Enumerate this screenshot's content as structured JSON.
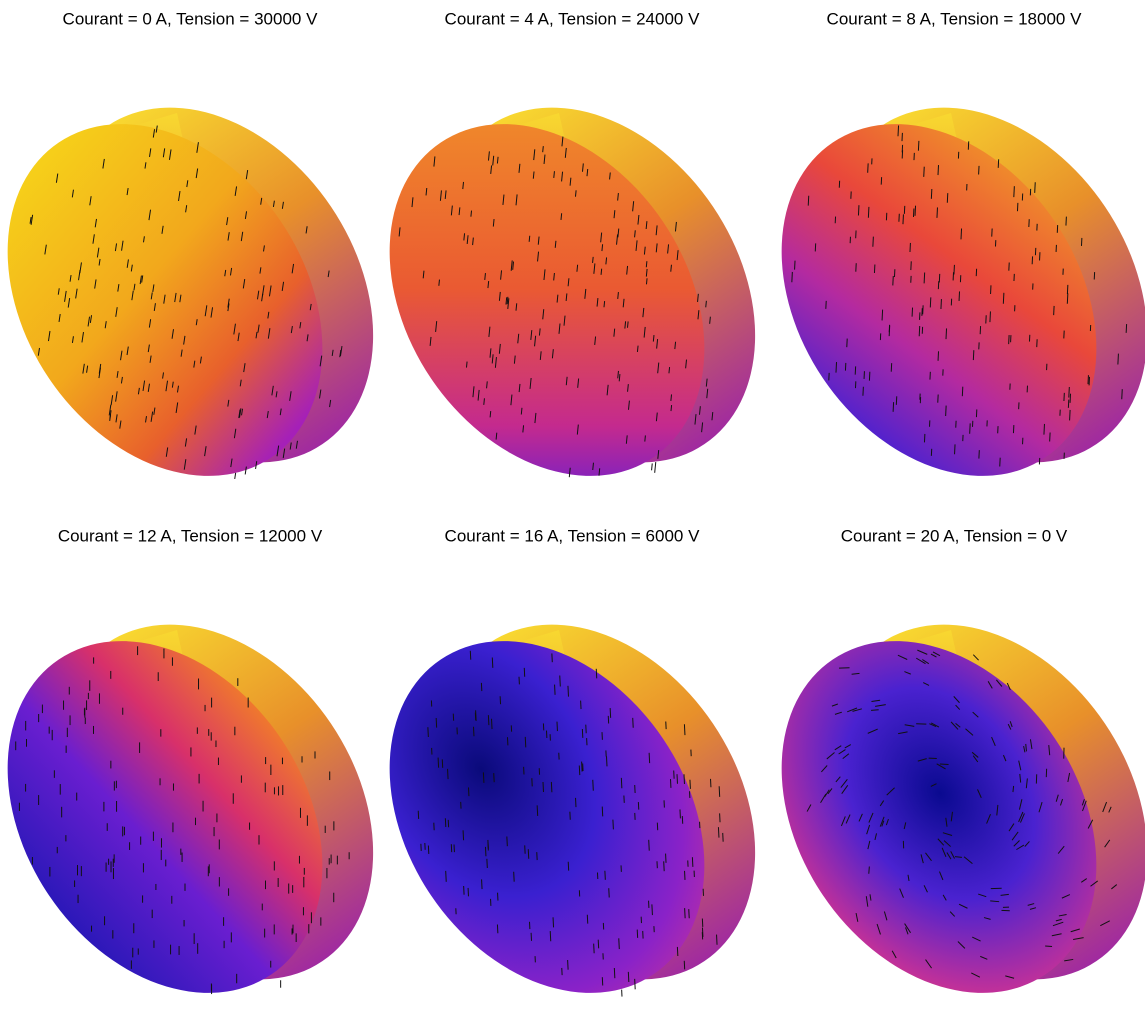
{
  "panels": [
    {
      "title": "Courant = 0 A, Tension = 30000 V"
    },
    {
      "title": "Courant = 4 A, Tension = 24000 V"
    },
    {
      "title": "Courant = 8 A, Tension = 18000 V"
    },
    {
      "title": "Courant = 12 A, Tension = 12000 V"
    },
    {
      "title": "Courant = 16 A, Tension = 6000 V"
    },
    {
      "title": "Courant = 20 A, Tension = 0 V"
    }
  ]
}
